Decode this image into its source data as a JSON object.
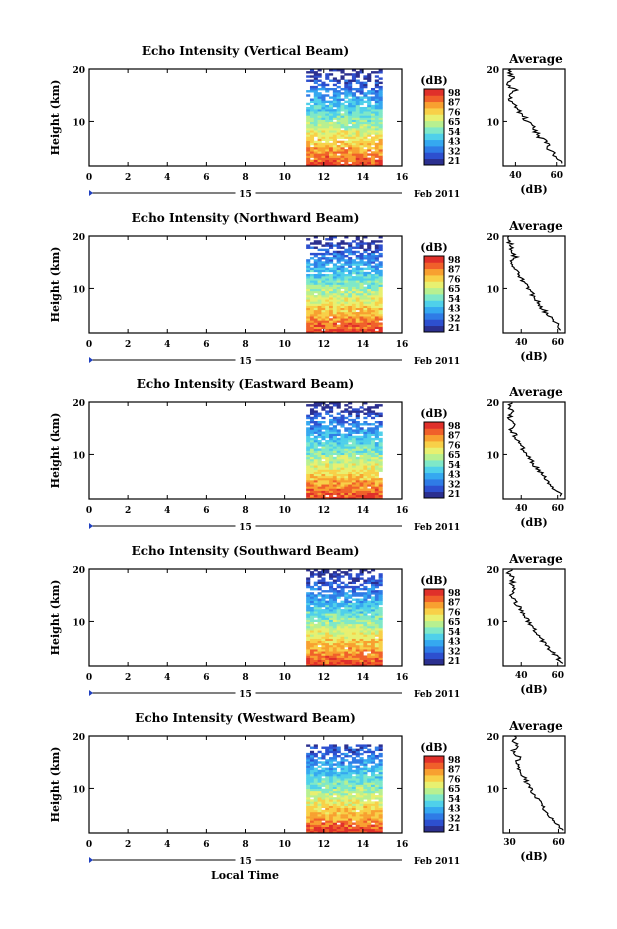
{
  "figure": {
    "footer_xlabel": "Local Time",
    "date_day": "15",
    "date_label": "Feb 2011"
  },
  "colors": {
    "colormap": [
      "#2b2f8f",
      "#2d4fcf",
      "#2f7be6",
      "#35a8f0",
      "#4fd0ea",
      "#7fe8c8",
      "#b8f090",
      "#e8f070",
      "#f8d048",
      "#f8a030",
      "#f0602a",
      "#e0302a"
    ],
    "axis": "#000000",
    "profile": "#000000",
    "date_marker": "#2040c0"
  },
  "chart_data": [
    {
      "type": "heatmap",
      "title": "Echo Intensity (Vertical Beam)",
      "ylabel": "Height (km)",
      "xlim": [
        0,
        16
      ],
      "ylim": [
        1.5,
        20
      ],
      "xticks": [
        "0",
        "2",
        "4",
        "6",
        "8",
        "10",
        "12",
        "14",
        "16"
      ],
      "yticks": [
        "20",
        "10"
      ],
      "data_x_range": [
        11.1,
        15
      ],
      "colorbar": {
        "unit": "(dB)",
        "ticks": [
          "98",
          "87",
          "76",
          "65",
          "54",
          "43",
          "32",
          "21"
        ]
      },
      "profile": {
        "title": "Average",
        "xlabel": "(dB)",
        "xlim": [
          34,
          64
        ],
        "xticks": [
          "40",
          "60"
        ],
        "heights": [
          2,
          3,
          4,
          5,
          6,
          7,
          8,
          9,
          10,
          11,
          12,
          13,
          14,
          15,
          16,
          17,
          18,
          19,
          20
        ],
        "values": [
          62,
          60,
          58,
          56,
          55,
          52,
          50,
          48,
          46,
          44,
          42,
          40,
          38,
          37,
          40,
          36,
          39,
          37,
          38
        ]
      }
    },
    {
      "type": "heatmap",
      "title": "Echo Intensity (Northward Beam)",
      "ylabel": "Height (km)",
      "xlim": [
        0,
        16
      ],
      "ylim": [
        1.5,
        20
      ],
      "xticks": [
        "0",
        "2",
        "4",
        "6",
        "8",
        "10",
        "12",
        "14",
        "16"
      ],
      "yticks": [
        "20",
        "10"
      ],
      "data_x_range": [
        11.1,
        15
      ],
      "colorbar": {
        "unit": "(dB)",
        "ticks": [
          "98",
          "87",
          "76",
          "65",
          "54",
          "43",
          "32",
          "21"
        ]
      },
      "profile": {
        "title": "Average",
        "xlabel": "(dB)",
        "xlim": [
          30,
          64
        ],
        "xticks": [
          "40",
          "60"
        ],
        "heights": [
          2,
          3,
          4,
          5,
          6,
          7,
          8,
          9,
          10,
          11,
          12,
          13,
          14,
          15,
          16,
          17,
          18,
          19,
          20
        ],
        "values": [
          62,
          60,
          57,
          55,
          52,
          50,
          48,
          46,
          44,
          42,
          40,
          38,
          36,
          35,
          37,
          34,
          35,
          33,
          34
        ]
      }
    },
    {
      "type": "heatmap",
      "title": "Echo Intensity (Eastward Beam)",
      "ylabel": "Height (km)",
      "xlim": [
        0,
        16
      ],
      "ylim": [
        1.5,
        20
      ],
      "xticks": [
        "0",
        "2",
        "4",
        "6",
        "8",
        "10",
        "12",
        "14",
        "16"
      ],
      "yticks": [
        "20",
        "10"
      ],
      "data_x_range": [
        11.1,
        15
      ],
      "colorbar": {
        "unit": "(dB)",
        "ticks": [
          "98",
          "87",
          "76",
          "65",
          "54",
          "43",
          "32",
          "21"
        ]
      },
      "profile": {
        "title": "Average",
        "xlabel": "(dB)",
        "xlim": [
          30,
          64
        ],
        "xticks": [
          "40",
          "60"
        ],
        "heights": [
          2,
          3,
          4,
          5,
          6,
          7,
          8,
          9,
          10,
          11,
          12,
          13,
          14,
          15,
          16,
          17,
          18,
          19,
          20
        ],
        "values": [
          62,
          60,
          57,
          55,
          52,
          50,
          47,
          45,
          43,
          41,
          39,
          37,
          36,
          34,
          36,
          33,
          35,
          33,
          34
        ]
      }
    },
    {
      "type": "heatmap",
      "title": "Echo Intensity (Southward Beam)",
      "ylabel": "Height (km)",
      "xlim": [
        0,
        16
      ],
      "ylim": [
        1.5,
        20
      ],
      "xticks": [
        "0",
        "2",
        "4",
        "6",
        "8",
        "10",
        "12",
        "14",
        "16"
      ],
      "yticks": [
        "20",
        "10"
      ],
      "data_x_range": [
        11.1,
        15
      ],
      "colorbar": {
        "unit": "(dB)",
        "ticks": [
          "98",
          "87",
          "76",
          "65",
          "54",
          "43",
          "32",
          "21"
        ]
      },
      "profile": {
        "title": "Average",
        "xlabel": "(dB)",
        "xlim": [
          30,
          64
        ],
        "xticks": [
          "40",
          "60"
        ],
        "heights": [
          2,
          3,
          4,
          5,
          6,
          7,
          8,
          9,
          10,
          11,
          12,
          13,
          14,
          15,
          16,
          17,
          18,
          19,
          20
        ],
        "values": [
          62,
          60,
          57,
          55,
          52,
          50,
          48,
          46,
          44,
          42,
          40,
          38,
          36,
          35,
          37,
          34,
          36,
          33,
          34
        ]
      }
    },
    {
      "type": "heatmap",
      "title": "Echo Intensity (Westward Beam)",
      "ylabel": "Height (km)",
      "xlim": [
        0,
        16
      ],
      "ylim": [
        1.5,
        20
      ],
      "xticks": [
        "0",
        "2",
        "4",
        "6",
        "8",
        "10",
        "12",
        "14",
        "16"
      ],
      "yticks": [
        "20",
        "10"
      ],
      "data_x_range": [
        11.1,
        15
      ],
      "colorbar": {
        "unit": "(dB)",
        "ticks": [
          "98",
          "87",
          "76",
          "65",
          "54",
          "43",
          "32",
          "21"
        ]
      },
      "profile": {
        "title": "Average",
        "xlabel": "(dB)",
        "xlim": [
          26,
          64
        ],
        "xticks": [
          "30",
          "60"
        ],
        "heights": [
          2,
          3,
          4,
          5,
          6,
          7,
          8,
          9,
          10,
          11,
          12,
          13,
          14,
          15,
          16,
          17,
          18,
          19,
          20
        ],
        "values": [
          62,
          59,
          56,
          54,
          51,
          49,
          47,
          45,
          43,
          41,
          39,
          37,
          35,
          34,
          36,
          32,
          35,
          33,
          34
        ]
      }
    }
  ]
}
